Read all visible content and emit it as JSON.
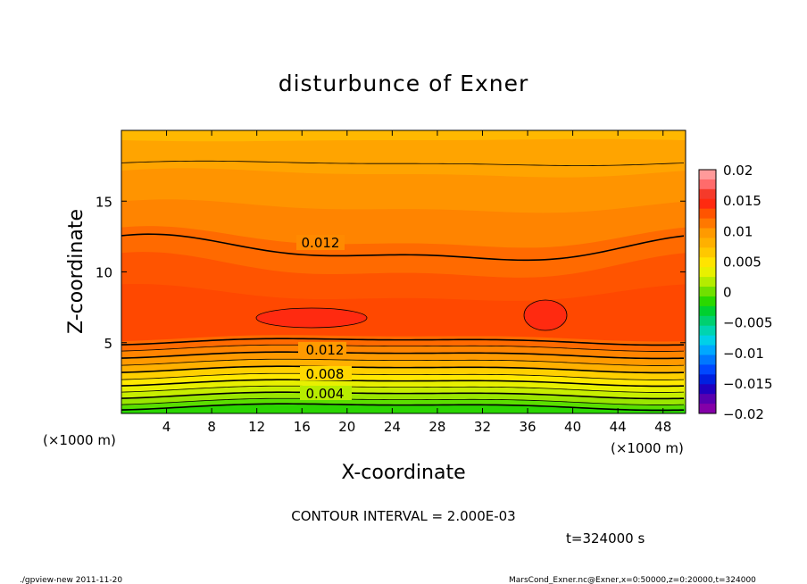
{
  "chart_data": {
    "type": "heatmap",
    "title": "disturbunce of Exner",
    "xlabel": "X-coordinate",
    "ylabel": "Z-coordinate",
    "x_unit": "(×1000 m)",
    "y_unit": "(×1000 m)",
    "xlim": [
      0,
      50
    ],
    "ylim": [
      0,
      20
    ],
    "x_ticks": [
      4,
      8,
      12,
      16,
      20,
      24,
      28,
      32,
      36,
      40,
      44,
      48
    ],
    "y_ticks": [
      5,
      10,
      15
    ],
    "colorbar": {
      "levels": [
        0.02,
        0.015,
        0.01,
        0.005,
        0,
        -0.005,
        -0.01,
        -0.015,
        -0.02
      ],
      "level_labels": [
        "0.02",
        "0.015",
        "0.01",
        "0.005",
        "0",
        "−0.005",
        "−0.01",
        "−0.015",
        "−0.02"
      ],
      "colors": [
        "#ff9a9a",
        "#ff6b6b",
        "#f53a2a",
        "#ff2a10",
        "#ff5400",
        "#ff7800",
        "#ff9a00",
        "#ffb000",
        "#ffc800",
        "#ffe400",
        "#e8f000",
        "#b4ec00",
        "#70e000",
        "#2ad800",
        "#00d030",
        "#00d070",
        "#00d4b0",
        "#00d0e8",
        "#00a8ff",
        "#0078ff",
        "#0048ff",
        "#0020e0",
        "#2000c0",
        "#5800b0",
        "#8400a8"
      ]
    },
    "contour_labels": [
      "0.012",
      "0.012",
      "0.008",
      "0.004"
    ],
    "contour_interval_text": "CONTOUR INTERVAL = 2.000E-03",
    "time_text": "t=324000 s"
  },
  "footer": {
    "left": "./gpview-new   2011-11-20",
    "right": "MarsCond_Exner.nc@Exner,x=0:50000,z=0:20000,t=324000"
  }
}
